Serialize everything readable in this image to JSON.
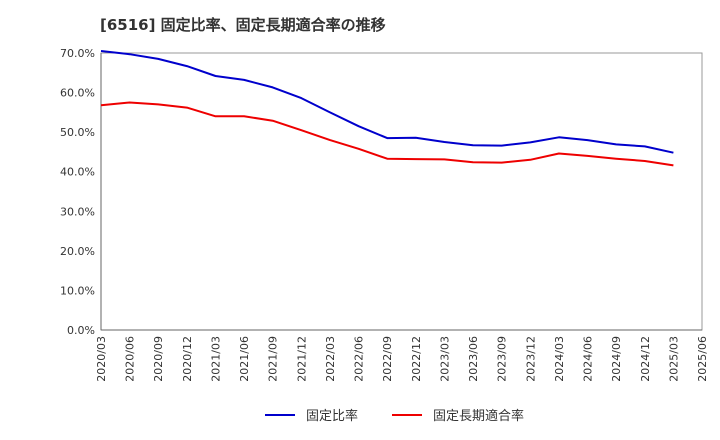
{
  "chart_data": {
    "type": "line",
    "title": "[6516]  固定比率、固定長期適合率の推移",
    "xlabel": "",
    "ylabel": "",
    "ylim": [
      0,
      70
    ],
    "yticks": [
      0,
      10,
      20,
      30,
      40,
      50,
      60,
      70
    ],
    "ytick_labels": [
      "0.0%",
      "10.0%",
      "20.0%",
      "30.0%",
      "40.0%",
      "50.0%",
      "60.0%",
      "70.0%"
    ],
    "x": [
      "2020/03",
      "2020/06",
      "2020/09",
      "2020/12",
      "2021/03",
      "2021/06",
      "2021/09",
      "2021/12",
      "2022/03",
      "2022/06",
      "2022/09",
      "2022/12",
      "2023/03",
      "2023/06",
      "2023/09",
      "2023/12",
      "2024/03",
      "2024/06",
      "2024/09",
      "2024/12",
      "2025/03",
      "2025/06"
    ],
    "grid": true,
    "legend_position": "bottom-center",
    "series": [
      {
        "name": "固定比率",
        "color": "#0000cc",
        "values": [
          70.5,
          69.7,
          68.5,
          66.7,
          64.2,
          63.2,
          61.3,
          58.6,
          55.0,
          51.5,
          48.5,
          48.6,
          47.5,
          46.7,
          46.6,
          47.4,
          48.7,
          48.0,
          46.9,
          46.4,
          44.8,
          null
        ]
      },
      {
        "name": "固定長期適合率",
        "color": "#ee0000",
        "values": [
          56.8,
          57.5,
          57.0,
          56.2,
          54.0,
          54.0,
          52.9,
          50.5,
          48.0,
          45.8,
          43.3,
          43.2,
          43.1,
          42.4,
          42.3,
          43.0,
          44.6,
          44.0,
          43.3,
          42.7,
          41.6,
          null
        ]
      }
    ]
  }
}
